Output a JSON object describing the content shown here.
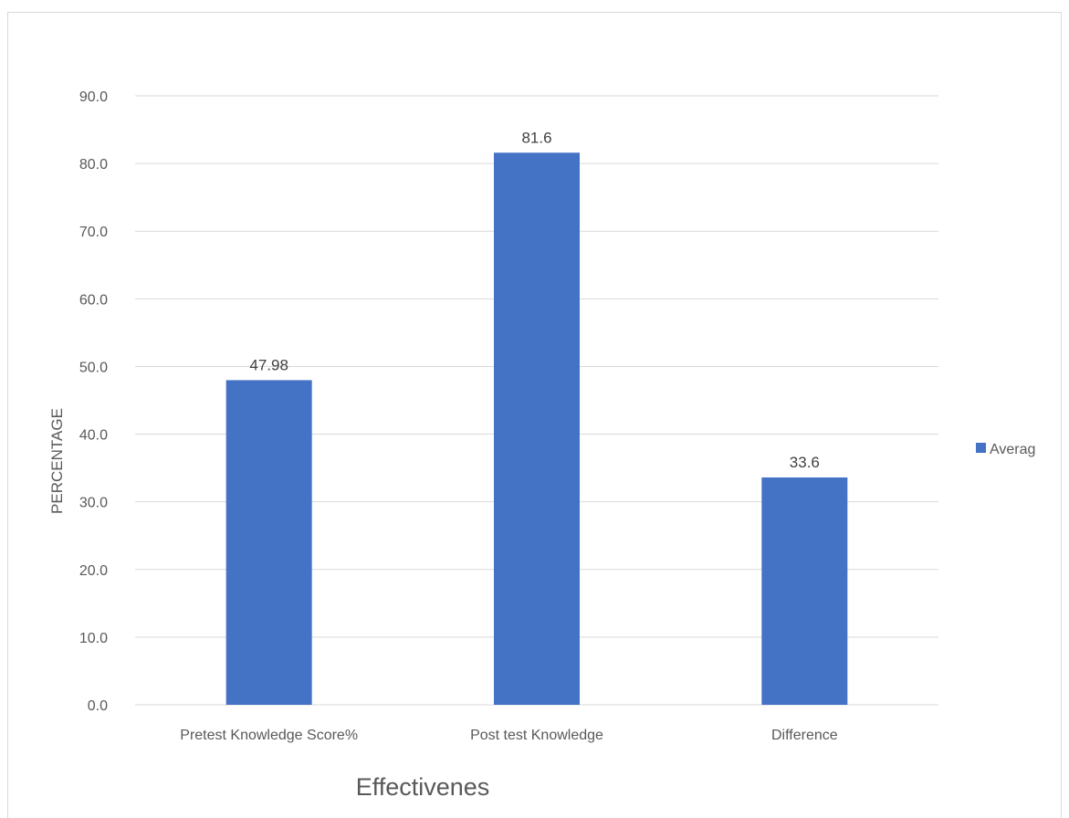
{
  "chart_data": {
    "type": "bar",
    "categories": [
      "Pretest Knowledge Score%",
      "Post test Knowledge",
      "Difference"
    ],
    "series": [
      {
        "name": "Averag",
        "values": [
          47.98,
          81.6,
          33.6
        ],
        "color": "#4472c4"
      }
    ],
    "data_labels": [
      "47.98",
      "81.6",
      "33.6"
    ],
    "y_ticks": [
      "0.0",
      "10.0",
      "20.0",
      "30.0",
      "40.0",
      "50.0",
      "60.0",
      "70.0",
      "80.0",
      "90.0"
    ],
    "ylim": [
      0,
      90
    ],
    "xlabel": "Effectivenes",
    "ylabel": "PERCENTAGE",
    "grid": true,
    "legend": "right",
    "gridline_color": "#d9d9d9"
  }
}
